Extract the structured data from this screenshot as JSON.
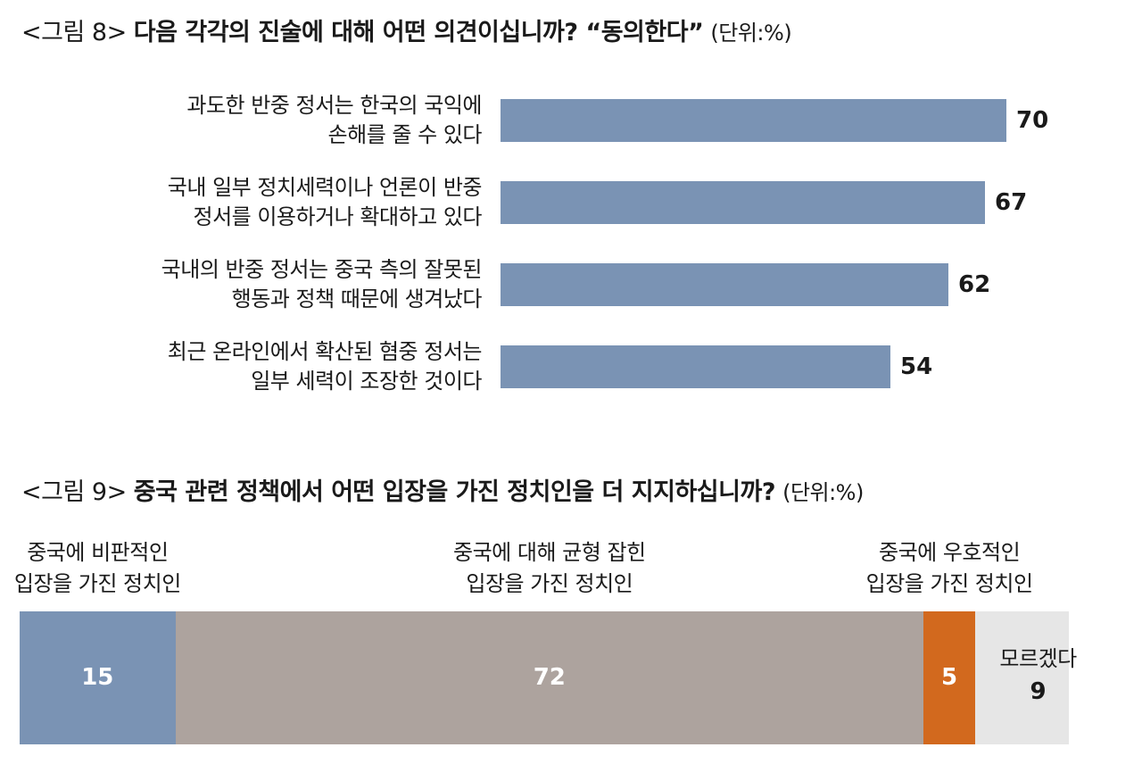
{
  "chart_data": [
    {
      "type": "bar",
      "orientation": "horizontal",
      "title_prefix": "<그림 8>",
      "title": "다음 각각의 진술에 대해 어떤 의견이십니까? “동의한다”",
      "unit": "(단위:%)",
      "categories": [
        "과도한 반중 정서는 한국의 국익에\n손해를 줄 수 있다",
        "국내 일부 정치세력이나 언론이 반중\n정서를 이용하거나 확대하고 있다",
        "국내의 반중 정서는 중국 측의 잘못된\n행동과 정책 때문에 생겨났다",
        "최근 온라인에서 확산된 혐중 정서는\n일부 세력이 조장한 것이다"
      ],
      "values": [
        70,
        67,
        62,
        54
      ],
      "xlim": [
        0,
        100
      ],
      "bar_color": "#7a93b4"
    },
    {
      "type": "bar",
      "orientation": "stacked-horizontal",
      "title_prefix": "<그림 9>",
      "title": "중국 관련 정책에서 어떤 입장을 가진 정치인을 더 지지하십니까?",
      "unit": "(단위:%)",
      "series": [
        {
          "name": "중국에 비판적인\n입장을 가진 정치인",
          "value": 15,
          "color": "#7a93b4"
        },
        {
          "name": "중국에 대해 균형 잡힌\n입장을 가진 정치인",
          "value": 72,
          "color": "#ada39e"
        },
        {
          "name": "중국에 우호적인\n입장을 가진 정치인",
          "value": 5,
          "color": "#d2691e"
        },
        {
          "name": "모르겠다",
          "value": 9,
          "color": "#e6e6e6"
        }
      ]
    }
  ]
}
